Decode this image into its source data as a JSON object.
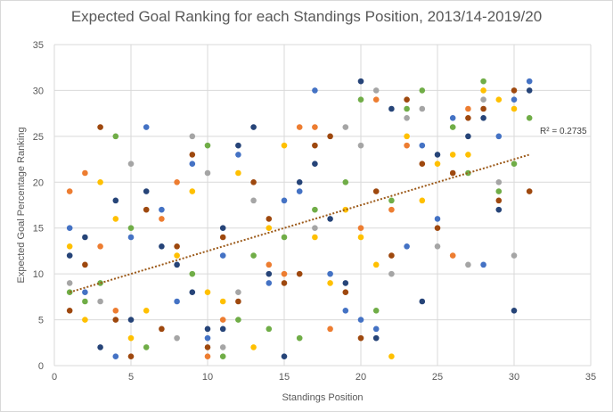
{
  "chart_data": {
    "type": "scatter",
    "title": "Expected Goal Ranking for each Standings Position, 2013/14-2019/20",
    "xlabel": "Standings Position",
    "ylabel": "Expected Goal Percentage Ranking",
    "xlim": [
      0,
      35
    ],
    "ylim": [
      0,
      35
    ],
    "x_ticks": [
      "0",
      "5",
      "10",
      "15",
      "20",
      "25",
      "30",
      "35"
    ],
    "y_ticks": [
      "0",
      "5",
      "10",
      "15",
      "20",
      "25",
      "30",
      "35"
    ],
    "grid": "vertical and horizontal major gridlines",
    "trendline": {
      "type": "linear",
      "x_start": 1,
      "x_end": 31,
      "y_start": 8.0,
      "y_end": 23.0,
      "color": "#9c5a1a",
      "r2_label": "R² = 0.2735"
    },
    "colors": {
      "blue": "#4472c4",
      "orange": "#ed7d31",
      "gray": "#a5a5a5",
      "yellow": "#ffc000",
      "navy": "#264478",
      "brown": "#9e480e",
      "green": "#70ad47"
    },
    "points": [
      {
        "x": 1,
        "y": 19,
        "c": "orange"
      },
      {
        "x": 1,
        "y": 15,
        "c": "blue"
      },
      {
        "x": 1,
        "y": 13,
        "c": "yellow"
      },
      {
        "x": 1,
        "y": 12,
        "c": "navy"
      },
      {
        "x": 1,
        "y": 9,
        "c": "gray"
      },
      {
        "x": 1,
        "y": 8,
        "c": "green"
      },
      {
        "x": 1,
        "y": 6,
        "c": "brown"
      },
      {
        "x": 2,
        "y": 21,
        "c": "orange"
      },
      {
        "x": 2,
        "y": 14,
        "c": "navy"
      },
      {
        "x": 2,
        "y": 11,
        "c": "brown"
      },
      {
        "x": 2,
        "y": 8,
        "c": "blue"
      },
      {
        "x": 2,
        "y": 7,
        "c": "green"
      },
      {
        "x": 2,
        "y": 5,
        "c": "yellow"
      },
      {
        "x": 3,
        "y": 26,
        "c": "brown"
      },
      {
        "x": 3,
        "y": 20,
        "c": "yellow"
      },
      {
        "x": 3,
        "y": 13,
        "c": "orange"
      },
      {
        "x": 3,
        "y": 9,
        "c": "green"
      },
      {
        "x": 3,
        "y": 7,
        "c": "gray"
      },
      {
        "x": 3,
        "y": 2,
        "c": "navy"
      },
      {
        "x": 4,
        "y": 25,
        "c": "green"
      },
      {
        "x": 4,
        "y": 18,
        "c": "navy"
      },
      {
        "x": 4,
        "y": 16,
        "c": "yellow"
      },
      {
        "x": 4,
        "y": 6,
        "c": "orange"
      },
      {
        "x": 4,
        "y": 5,
        "c": "brown"
      },
      {
        "x": 4,
        "y": 1,
        "c": "blue"
      },
      {
        "x": 5,
        "y": 22,
        "c": "gray"
      },
      {
        "x": 5,
        "y": 15,
        "c": "green"
      },
      {
        "x": 5,
        "y": 14,
        "c": "blue"
      },
      {
        "x": 5,
        "y": 5,
        "c": "navy"
      },
      {
        "x": 5,
        "y": 3,
        "c": "yellow"
      },
      {
        "x": 5,
        "y": 1,
        "c": "brown"
      },
      {
        "x": 6,
        "y": 26,
        "c": "blue"
      },
      {
        "x": 6,
        "y": 19,
        "c": "navy"
      },
      {
        "x": 6,
        "y": 17,
        "c": "brown"
      },
      {
        "x": 6,
        "y": 6,
        "c": "yellow"
      },
      {
        "x": 6,
        "y": 2,
        "c": "green"
      },
      {
        "x": 7,
        "y": 17,
        "c": "blue"
      },
      {
        "x": 7,
        "y": 16,
        "c": "orange"
      },
      {
        "x": 7,
        "y": 13,
        "c": "navy"
      },
      {
        "x": 7,
        "y": 4,
        "c": "brown"
      },
      {
        "x": 8,
        "y": 20,
        "c": "orange"
      },
      {
        "x": 8,
        "y": 13,
        "c": "brown"
      },
      {
        "x": 8,
        "y": 12,
        "c": "yellow"
      },
      {
        "x": 8,
        "y": 11,
        "c": "navy"
      },
      {
        "x": 8,
        "y": 7,
        "c": "blue"
      },
      {
        "x": 8,
        "y": 3,
        "c": "gray"
      },
      {
        "x": 9,
        "y": 25,
        "c": "gray"
      },
      {
        "x": 9,
        "y": 23,
        "c": "brown"
      },
      {
        "x": 9,
        "y": 22,
        "c": "blue"
      },
      {
        "x": 9,
        "y": 19,
        "c": "yellow"
      },
      {
        "x": 9,
        "y": 10,
        "c": "green"
      },
      {
        "x": 9,
        "y": 8,
        "c": "navy"
      },
      {
        "x": 10,
        "y": 24,
        "c": "green"
      },
      {
        "x": 10,
        "y": 21,
        "c": "gray"
      },
      {
        "x": 10,
        "y": 8,
        "c": "yellow"
      },
      {
        "x": 10,
        "y": 4,
        "c": "navy"
      },
      {
        "x": 10,
        "y": 3,
        "c": "blue"
      },
      {
        "x": 10,
        "y": 2,
        "c": "brown"
      },
      {
        "x": 10,
        "y": 1,
        "c": "orange"
      },
      {
        "x": 11,
        "y": 15,
        "c": "navy"
      },
      {
        "x": 11,
        "y": 14,
        "c": "brown"
      },
      {
        "x": 11,
        "y": 12,
        "c": "blue"
      },
      {
        "x": 11,
        "y": 7,
        "c": "yellow"
      },
      {
        "x": 11,
        "y": 5,
        "c": "orange"
      },
      {
        "x": 11,
        "y": 4,
        "c": "navy"
      },
      {
        "x": 11,
        "y": 2,
        "c": "gray"
      },
      {
        "x": 11,
        "y": 1,
        "c": "green"
      },
      {
        "x": 12,
        "y": 24,
        "c": "navy"
      },
      {
        "x": 12,
        "y": 23,
        "c": "blue"
      },
      {
        "x": 12,
        "y": 21,
        "c": "yellow"
      },
      {
        "x": 12,
        "y": 8,
        "c": "gray"
      },
      {
        "x": 12,
        "y": 7,
        "c": "brown"
      },
      {
        "x": 12,
        "y": 5,
        "c": "green"
      },
      {
        "x": 13,
        "y": 26,
        "c": "navy"
      },
      {
        "x": 13,
        "y": 20,
        "c": "brown"
      },
      {
        "x": 13,
        "y": 18,
        "c": "gray"
      },
      {
        "x": 13,
        "y": 12,
        "c": "green"
      },
      {
        "x": 13,
        "y": 2,
        "c": "yellow"
      },
      {
        "x": 14,
        "y": 16,
        "c": "brown"
      },
      {
        "x": 14,
        "y": 15,
        "c": "yellow"
      },
      {
        "x": 14,
        "y": 11,
        "c": "orange"
      },
      {
        "x": 14,
        "y": 10,
        "c": "navy"
      },
      {
        "x": 14,
        "y": 9,
        "c": "blue"
      },
      {
        "x": 14,
        "y": 4,
        "c": "green"
      },
      {
        "x": 15,
        "y": 24,
        "c": "yellow"
      },
      {
        "x": 15,
        "y": 18,
        "c": "blue"
      },
      {
        "x": 15,
        "y": 14,
        "c": "green"
      },
      {
        "x": 15,
        "y": 10,
        "c": "orange"
      },
      {
        "x": 15,
        "y": 9,
        "c": "brown"
      },
      {
        "x": 15,
        "y": 1,
        "c": "navy"
      },
      {
        "x": 16,
        "y": 26,
        "c": "orange"
      },
      {
        "x": 16,
        "y": 20,
        "c": "navy"
      },
      {
        "x": 16,
        "y": 19,
        "c": "blue"
      },
      {
        "x": 16,
        "y": 10,
        "c": "brown"
      },
      {
        "x": 16,
        "y": 3,
        "c": "green"
      },
      {
        "x": 17,
        "y": 30,
        "c": "blue"
      },
      {
        "x": 17,
        "y": 26,
        "c": "orange"
      },
      {
        "x": 17,
        "y": 24,
        "c": "brown"
      },
      {
        "x": 17,
        "y": 22,
        "c": "navy"
      },
      {
        "x": 17,
        "y": 17,
        "c": "green"
      },
      {
        "x": 17,
        "y": 15,
        "c": "gray"
      },
      {
        "x": 17,
        "y": 14,
        "c": "yellow"
      },
      {
        "x": 18,
        "y": 25,
        "c": "brown"
      },
      {
        "x": 18,
        "y": 16,
        "c": "navy"
      },
      {
        "x": 18,
        "y": 10,
        "c": "blue"
      },
      {
        "x": 18,
        "y": 9,
        "c": "yellow"
      },
      {
        "x": 18,
        "y": 4,
        "c": "orange"
      },
      {
        "x": 19,
        "y": 26,
        "c": "gray"
      },
      {
        "x": 19,
        "y": 20,
        "c": "green"
      },
      {
        "x": 19,
        "y": 17,
        "c": "yellow"
      },
      {
        "x": 19,
        "y": 9,
        "c": "navy"
      },
      {
        "x": 19,
        "y": 8,
        "c": "brown"
      },
      {
        "x": 19,
        "y": 6,
        "c": "blue"
      },
      {
        "x": 20,
        "y": 31,
        "c": "navy"
      },
      {
        "x": 20,
        "y": 29,
        "c": "green"
      },
      {
        "x": 20,
        "y": 24,
        "c": "gray"
      },
      {
        "x": 20,
        "y": 15,
        "c": "orange"
      },
      {
        "x": 20,
        "y": 14,
        "c": "yellow"
      },
      {
        "x": 20,
        "y": 5,
        "c": "blue"
      },
      {
        "x": 20,
        "y": 3,
        "c": "brown"
      },
      {
        "x": 21,
        "y": 30,
        "c": "gray"
      },
      {
        "x": 21,
        "y": 29,
        "c": "orange"
      },
      {
        "x": 21,
        "y": 19,
        "c": "brown"
      },
      {
        "x": 21,
        "y": 11,
        "c": "yellow"
      },
      {
        "x": 21,
        "y": 6,
        "c": "green"
      },
      {
        "x": 21,
        "y": 4,
        "c": "blue"
      },
      {
        "x": 21,
        "y": 3,
        "c": "navy"
      },
      {
        "x": 22,
        "y": 28,
        "c": "navy"
      },
      {
        "x": 22,
        "y": 18,
        "c": "green"
      },
      {
        "x": 22,
        "y": 17,
        "c": "orange"
      },
      {
        "x": 22,
        "y": 12,
        "c": "brown"
      },
      {
        "x": 22,
        "y": 10,
        "c": "gray"
      },
      {
        "x": 22,
        "y": 1,
        "c": "yellow"
      },
      {
        "x": 23,
        "y": 29,
        "c": "brown"
      },
      {
        "x": 23,
        "y": 28,
        "c": "green"
      },
      {
        "x": 23,
        "y": 27,
        "c": "gray"
      },
      {
        "x": 23,
        "y": 25,
        "c": "yellow"
      },
      {
        "x": 23,
        "y": 24,
        "c": "orange"
      },
      {
        "x": 23,
        "y": 13,
        "c": "blue"
      },
      {
        "x": 24,
        "y": 30,
        "c": "green"
      },
      {
        "x": 24,
        "y": 28,
        "c": "gray"
      },
      {
        "x": 24,
        "y": 24,
        "c": "blue"
      },
      {
        "x": 24,
        "y": 22,
        "c": "brown"
      },
      {
        "x": 24,
        "y": 18,
        "c": "yellow"
      },
      {
        "x": 24,
        "y": 7,
        "c": "navy"
      },
      {
        "x": 25,
        "y": 23,
        "c": "navy"
      },
      {
        "x": 25,
        "y": 22,
        "c": "yellow"
      },
      {
        "x": 25,
        "y": 16,
        "c": "blue"
      },
      {
        "x": 25,
        "y": 15,
        "c": "brown"
      },
      {
        "x": 25,
        "y": 13,
        "c": "gray"
      },
      {
        "x": 26,
        "y": 27,
        "c": "blue"
      },
      {
        "x": 26,
        "y": 26,
        "c": "green"
      },
      {
        "x": 26,
        "y": 23,
        "c": "yellow"
      },
      {
        "x": 26,
        "y": 21,
        "c": "brown"
      },
      {
        "x": 26,
        "y": 12,
        "c": "orange"
      },
      {
        "x": 27,
        "y": 28,
        "c": "orange"
      },
      {
        "x": 27,
        "y": 27,
        "c": "brown"
      },
      {
        "x": 27,
        "y": 25,
        "c": "navy"
      },
      {
        "x": 27,
        "y": 23,
        "c": "yellow"
      },
      {
        "x": 27,
        "y": 21,
        "c": "green"
      },
      {
        "x": 27,
        "y": 11,
        "c": "gray"
      },
      {
        "x": 28,
        "y": 31,
        "c": "green"
      },
      {
        "x": 28,
        "y": 30,
        "c": "yellow"
      },
      {
        "x": 28,
        "y": 29,
        "c": "gray"
      },
      {
        "x": 28,
        "y": 28,
        "c": "brown"
      },
      {
        "x": 28,
        "y": 27,
        "c": "navy"
      },
      {
        "x": 28,
        "y": 11,
        "c": "blue"
      },
      {
        "x": 29,
        "y": 29,
        "c": "yellow"
      },
      {
        "x": 29,
        "y": 25,
        "c": "blue"
      },
      {
        "x": 29,
        "y": 20,
        "c": "gray"
      },
      {
        "x": 29,
        "y": 19,
        "c": "green"
      },
      {
        "x": 29,
        "y": 18,
        "c": "brown"
      },
      {
        "x": 29,
        "y": 17,
        "c": "navy"
      },
      {
        "x": 30,
        "y": 30,
        "c": "brown"
      },
      {
        "x": 30,
        "y": 29,
        "c": "blue"
      },
      {
        "x": 30,
        "y": 28,
        "c": "yellow"
      },
      {
        "x": 30,
        "y": 22,
        "c": "green"
      },
      {
        "x": 30,
        "y": 12,
        "c": "gray"
      },
      {
        "x": 30,
        "y": 6,
        "c": "navy"
      },
      {
        "x": 31,
        "y": 31,
        "c": "blue"
      },
      {
        "x": 31,
        "y": 30,
        "c": "navy"
      },
      {
        "x": 31,
        "y": 27,
        "c": "green"
      },
      {
        "x": 31,
        "y": 19,
        "c": "brown"
      }
    ]
  }
}
